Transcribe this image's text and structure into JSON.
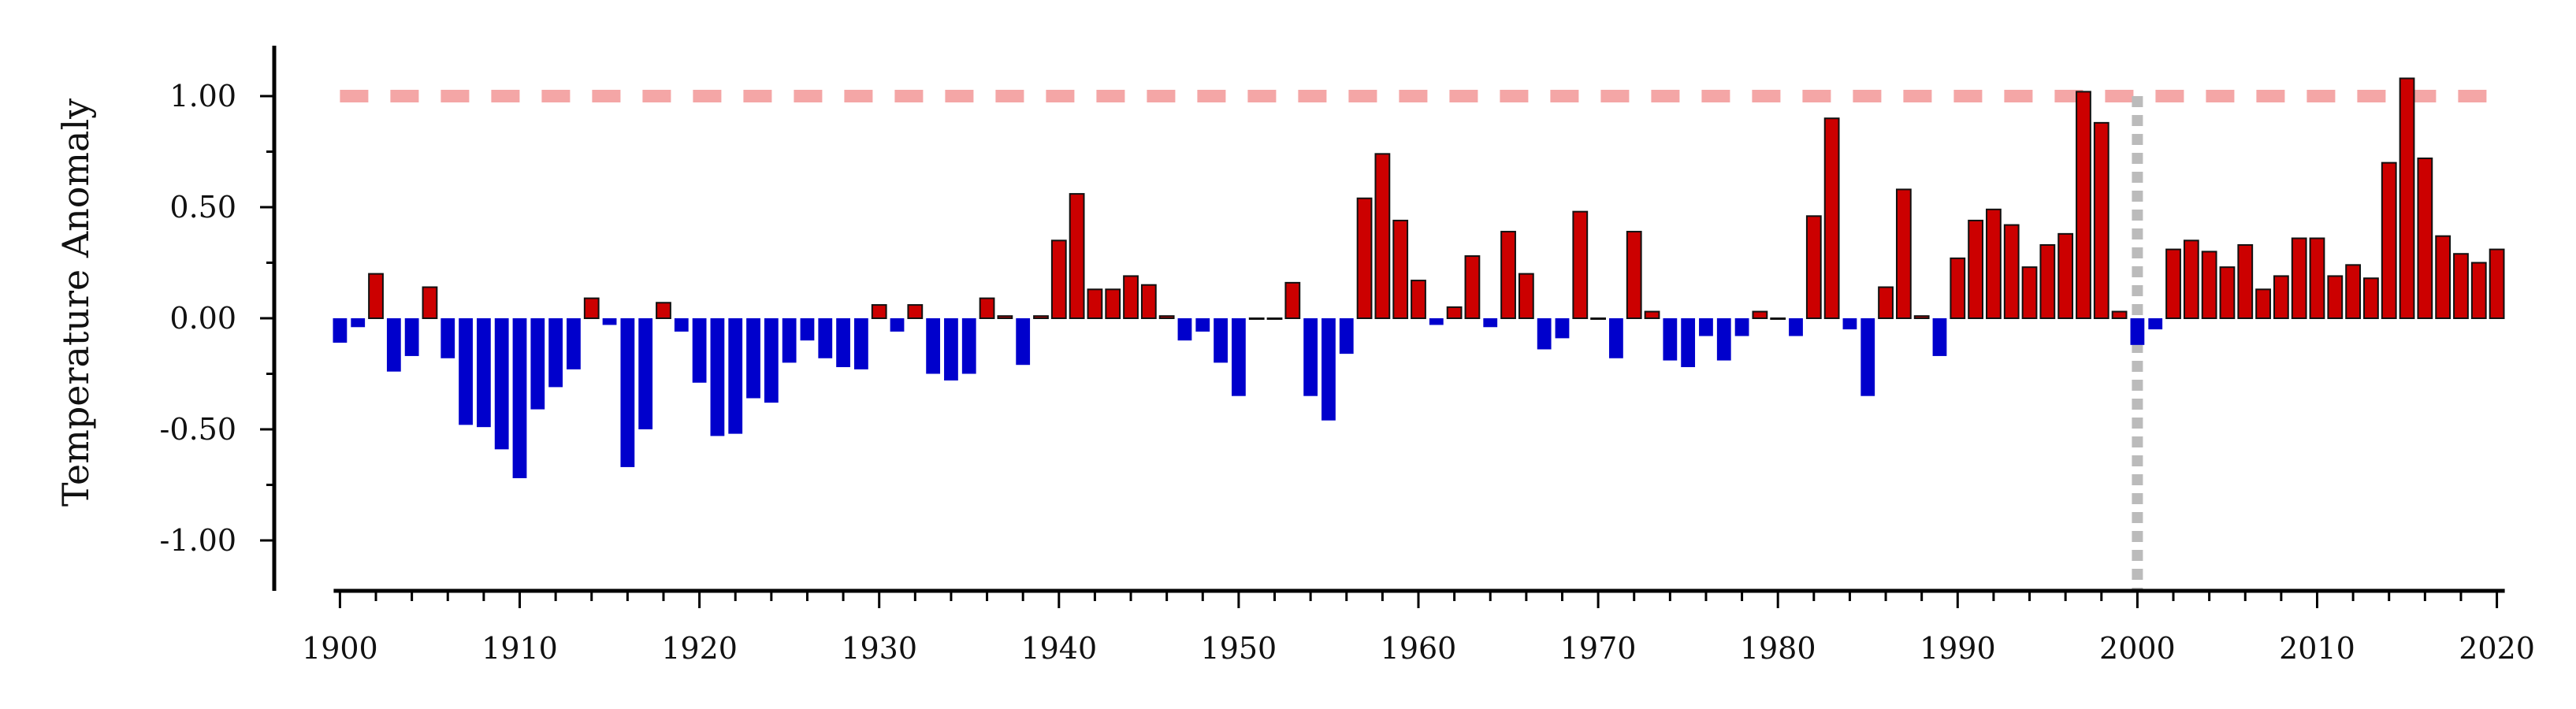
{
  "chart_data": {
    "type": "bar",
    "title": "",
    "xlabel": "",
    "ylabel": "Temperature Anomaly",
    "xlim": [
      1899.5,
      2020.5
    ],
    "ylim": [
      -1.22,
      1.22
    ],
    "x_ticks": [
      1900,
      1910,
      1920,
      1930,
      1940,
      1950,
      1960,
      1970,
      1980,
      1990,
      2000,
      2010,
      2020
    ],
    "x_tick_labels": [
      "1900",
      "1910",
      "1920",
      "1930",
      "1940",
      "1950",
      "1960",
      "1970",
      "1980",
      "1990",
      "2000",
      "2010",
      "2020"
    ],
    "y_ticks": [
      -1.0,
      -0.5,
      0.0,
      0.5,
      1.0
    ],
    "y_tick_labels": [
      "-1.00",
      "-0.50",
      "0.00",
      "0.50",
      "1.00"
    ],
    "grid": false,
    "legend": "none",
    "reference_lines": [
      {
        "orientation": "horizontal",
        "value": 1.0,
        "color": "#f4a6a6",
        "style": "dashed"
      },
      {
        "orientation": "vertical",
        "value": 2000,
        "color": "#bbbbbb",
        "style": "dotted"
      }
    ],
    "colors": {
      "positive": "#cc0000",
      "negative": "#0000cc",
      "edge": "#111111"
    },
    "x": [
      1900,
      1901,
      1902,
      1903,
      1904,
      1905,
      1906,
      1907,
      1908,
      1909,
      1910,
      1911,
      1912,
      1913,
      1914,
      1915,
      1916,
      1917,
      1918,
      1919,
      1920,
      1921,
      1922,
      1923,
      1924,
      1925,
      1926,
      1927,
      1928,
      1929,
      1930,
      1931,
      1932,
      1933,
      1934,
      1935,
      1936,
      1937,
      1938,
      1939,
      1940,
      1941,
      1942,
      1943,
      1944,
      1945,
      1946,
      1947,
      1948,
      1949,
      1950,
      1951,
      1952,
      1953,
      1954,
      1955,
      1956,
      1957,
      1958,
      1959,
      1960,
      1961,
      1962,
      1963,
      1964,
      1965,
      1966,
      1967,
      1968,
      1969,
      1970,
      1971,
      1972,
      1973,
      1974,
      1975,
      1976,
      1977,
      1978,
      1979,
      1980,
      1981,
      1982,
      1983,
      1984,
      1985,
      1986,
      1987,
      1988,
      1989,
      1990,
      1991,
      1992,
      1993,
      1994,
      1995,
      1996,
      1997,
      1998,
      1999,
      2000,
      2001,
      2002,
      2003,
      2004,
      2005,
      2006,
      2007,
      2008,
      2009,
      2010,
      2011,
      2012,
      2013,
      2014,
      2015,
      2016,
      2017,
      2018,
      2019,
      2020
    ],
    "values": [
      -0.11,
      -0.04,
      0.2,
      -0.24,
      -0.17,
      0.14,
      -0.18,
      -0.48,
      -0.49,
      -0.59,
      -0.72,
      -0.41,
      -0.31,
      -0.23,
      0.09,
      -0.03,
      -0.67,
      -0.5,
      0.07,
      -0.06,
      -0.29,
      -0.53,
      -0.52,
      -0.36,
      -0.38,
      -0.2,
      -0.1,
      -0.18,
      -0.22,
      -0.23,
      0.06,
      -0.06,
      0.06,
      -0.25,
      -0.28,
      -0.25,
      0.09,
      0.01,
      -0.21,
      0.01,
      0.35,
      0.56,
      0.13,
      0.13,
      0.19,
      0.15,
      0.01,
      -0.1,
      -0.06,
      -0.2,
      -0.35,
      0.0,
      0.0,
      0.16,
      -0.35,
      -0.46,
      -0.16,
      0.54,
      0.74,
      0.44,
      0.17,
      -0.03,
      0.05,
      0.28,
      -0.04,
      0.39,
      0.2,
      -0.14,
      -0.09,
      0.48,
      0.0,
      -0.18,
      0.39,
      0.03,
      -0.19,
      -0.22,
      -0.08,
      -0.19,
      -0.08,
      0.03,
      0.0,
      -0.08,
      0.46,
      0.9,
      -0.05,
      -0.35,
      0.14,
      0.58,
      0.01,
      -0.17,
      0.27,
      0.44,
      0.49,
      0.42,
      0.23,
      0.33,
      0.38,
      1.02,
      0.88,
      0.03,
      -0.12,
      -0.05,
      0.31,
      0.35,
      0.3,
      0.23,
      0.33,
      0.13,
      0.19,
      0.36,
      0.36,
      0.19,
      0.24,
      0.18,
      0.7,
      1.08,
      0.72,
      0.37,
      0.29,
      0.25,
      0.31
    ]
  }
}
